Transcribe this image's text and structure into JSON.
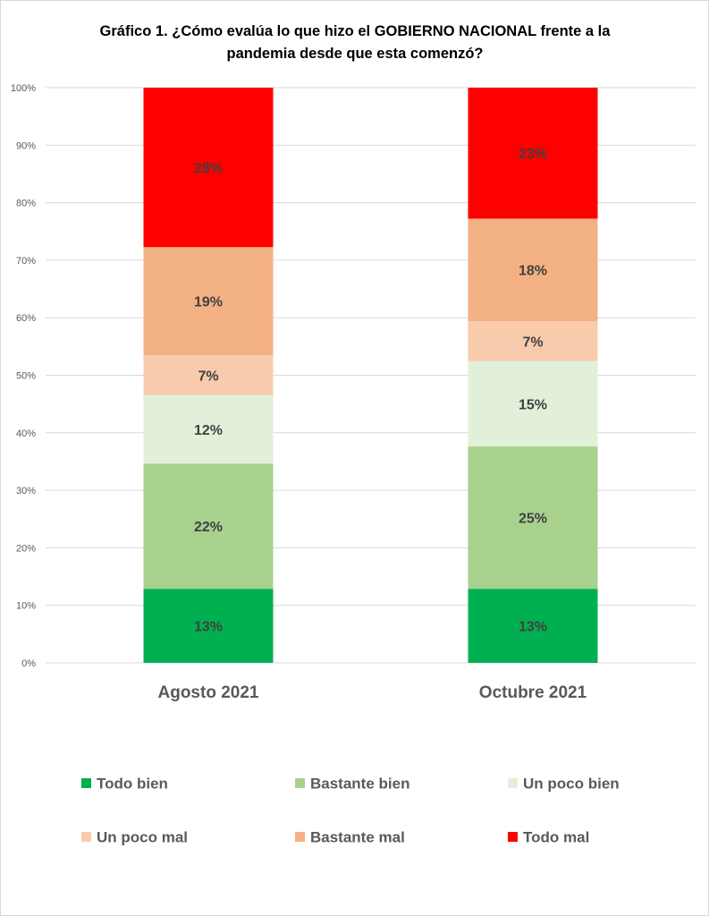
{
  "chart_data": {
    "type": "bar",
    "stacked": true,
    "normalized": true,
    "title_lines": [
      "Gráfico 1. ¿Cómo evalúa lo que hizo el GOBIERNO NACIONAL frente a la",
      "pandemia desde que esta comenzó?"
    ],
    "categories": [
      "Agosto 2021",
      "Octubre 2021"
    ],
    "series": [
      {
        "name": "Todo bien",
        "color": "#00B050",
        "values": [
          13,
          13
        ]
      },
      {
        "name": "Bastante bien",
        "color": "#A9D18E",
        "values": [
          22,
          25
        ]
      },
      {
        "name": "Un poco bien",
        "color": "#E2F0D9",
        "values": [
          12,
          15
        ]
      },
      {
        "name": "Un poco mal",
        "color": "#F8CBAD",
        "values": [
          7,
          7
        ]
      },
      {
        "name": "Bastante mal",
        "color": "#F4B183",
        "values": [
          19,
          18
        ]
      },
      {
        "name": "Todo mal",
        "color": "#FF0000",
        "values": [
          28,
          23
        ]
      }
    ],
    "yticks": [
      "0%",
      "10%",
      "20%",
      "30%",
      "40%",
      "50%",
      "60%",
      "70%",
      "80%",
      "90%",
      "100%"
    ],
    "ylim": [
      0,
      100
    ],
    "grid": true,
    "legend_position": "bottom",
    "xlabel": "",
    "ylabel": ""
  }
}
